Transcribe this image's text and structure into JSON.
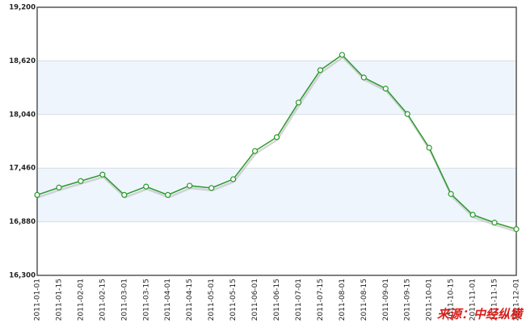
{
  "chart_data": {
    "type": "line",
    "x": [
      "2011-01-01",
      "2011-01-15",
      "2011-02-01",
      "2011-02-15",
      "2011-03-01",
      "2011-03-15",
      "2011-04-01",
      "2011-04-15",
      "2011-05-01",
      "2011-05-15",
      "2011-06-01",
      "2011-06-15",
      "2011-07-01",
      "2011-07-15",
      "2011-08-01",
      "2011-08-15",
      "2011-09-01",
      "2011-09-15",
      "2011-10-01",
      "2011-10-15",
      "2011-11-01",
      "2011-11-15",
      "2011-12-01"
    ],
    "series": [
      {
        "color": "#2a9a2a",
        "values": [
          17170,
          17250,
          17320,
          17390,
          17170,
          17260,
          17170,
          17270,
          17245,
          17340,
          17645,
          17795,
          18170,
          18520,
          18685,
          18440,
          18320,
          18045,
          17680,
          17180,
          16955,
          16870,
          16800
        ]
      }
    ],
    "ylim": [
      16300,
      19200
    ],
    "yticks": [
      {
        "value": 16300,
        "label": "16,300"
      },
      {
        "value": 16880,
        "label": "16,880"
      },
      {
        "value": 17460,
        "label": "17,460"
      },
      {
        "value": 18040,
        "label": "18,040"
      },
      {
        "value": 18620,
        "label": "18,620"
      },
      {
        "value": 19200,
        "label": "19,200"
      }
    ],
    "grid": true,
    "source": "来源：中经纵横"
  }
}
